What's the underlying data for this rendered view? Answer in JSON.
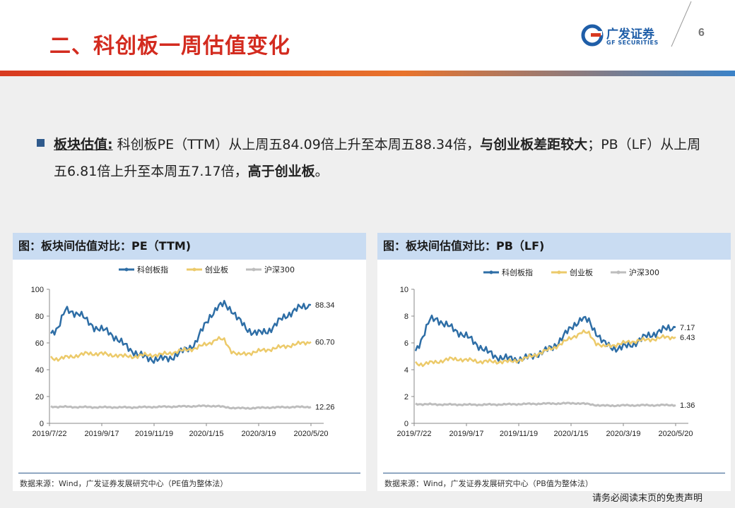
{
  "header": {
    "title": "二、科创板一周估值变化",
    "logo_cn": "广发证券",
    "logo_en": "GF SECURITIES",
    "page_number": "6"
  },
  "summary": {
    "label": "板块估值:",
    "part1": " 科创板PE（TTM）从上周五84.09倍上升至本周五88.34倍，",
    "bold1": "与创业板差距较大",
    "part2": "；PB（LF）从上周五6.81倍上升至本周五7.17倍，",
    "bold2": "高于创业板",
    "end": "。"
  },
  "colors": {
    "star": "#2e6ea6",
    "chinext": "#ecca6a",
    "hs300": "#bdbdbd"
  },
  "chart_data": [
    {
      "type": "line",
      "title": "图：板块间估值对比：PE（TTM)",
      "source": "数据来源：Wind，广发证券发展研究中心（PE值为整体法）",
      "x_ticks": [
        "2019/7/22",
        "2019/9/17",
        "2019/11/19",
        "2020/1/15",
        "2020/3/19",
        "2020/5/20"
      ],
      "ylim": [
        0,
        100
      ],
      "y_ticks": [
        "0",
        "20",
        "40",
        "60",
        "80",
        "100"
      ],
      "end_labels": [
        "88.34",
        "60.70",
        "12.26"
      ],
      "series": [
        {
          "name": "科创板指",
          "values": [
            67,
            72,
            84,
            83,
            82,
            76,
            72,
            70,
            68,
            64,
            59,
            55,
            52,
            49,
            48,
            48,
            48,
            50,
            53,
            56,
            60,
            70,
            80,
            86,
            89,
            85,
            77,
            71,
            68,
            67,
            69,
            73,
            78,
            82,
            85,
            87,
            88.34
          ]
        },
        {
          "name": "创业板",
          "values": [
            49,
            48,
            49,
            50,
            51,
            52,
            52,
            52,
            51,
            51,
            50,
            50,
            50,
            51,
            51,
            51,
            52,
            53,
            54,
            55,
            56,
            58,
            60,
            63,
            62,
            54,
            51,
            52,
            53,
            54,
            55,
            56,
            57,
            58,
            59,
            60,
            60.7
          ]
        },
        {
          "name": "沪深300",
          "values": [
            12.5,
            12.3,
            12.3,
            12.2,
            12.1,
            12.1,
            12.0,
            12.0,
            12.0,
            12.0,
            11.9,
            11.9,
            12.0,
            12.1,
            12.2,
            12.3,
            12.4,
            12.5,
            12.6,
            12.7,
            12.8,
            12.9,
            13.0,
            12.8,
            12.2,
            11.6,
            11.3,
            11.3,
            11.4,
            11.6,
            11.8,
            11.9,
            12.0,
            12.1,
            12.2,
            12.2,
            12.26
          ]
        }
      ]
    },
    {
      "type": "line",
      "title": "图：板块间估值对比：PB（LF)",
      "source": "数据来源：Wind，广发证券发展研究中心（PB值为整体法）",
      "x_ticks": [
        "2019/7/22",
        "2019/9/17",
        "2019/11/19",
        "2020/1/15",
        "2020/3/19",
        "2020/5/20"
      ],
      "ylim": [
        0,
        10
      ],
      "y_ticks": [
        "0",
        "2",
        "4",
        "6",
        "8",
        "10"
      ],
      "end_labels": [
        "7.17",
        "6.43",
        "1.36"
      ],
      "series": [
        {
          "name": "科创板指",
          "values": [
            5.4,
            6.5,
            7.7,
            7.8,
            7.4,
            7.1,
            6.8,
            6.5,
            6.1,
            5.7,
            5.3,
            5.0,
            4.9,
            4.8,
            4.8,
            4.8,
            5.0,
            5.2,
            5.4,
            5.7,
            6.2,
            6.8,
            7.4,
            7.8,
            7.6,
            6.8,
            6.0,
            5.7,
            5.6,
            5.7,
            5.9,
            6.2,
            6.5,
            6.7,
            6.9,
            7.1,
            7.17
          ]
        },
        {
          "name": "创业板",
          "values": [
            4.5,
            4.4,
            4.5,
            4.6,
            4.7,
            4.8,
            4.8,
            4.7,
            4.7,
            4.6,
            4.6,
            4.6,
            4.6,
            4.6,
            4.7,
            4.8,
            5.0,
            5.2,
            5.4,
            5.6,
            5.9,
            6.2,
            6.5,
            6.8,
            6.7,
            6.0,
            5.7,
            5.8,
            5.9,
            6.0,
            6.1,
            6.2,
            6.2,
            6.3,
            6.4,
            6.4,
            6.43
          ]
        },
        {
          "name": "沪深300",
          "values": [
            1.45,
            1.42,
            1.42,
            1.41,
            1.4,
            1.4,
            1.4,
            1.39,
            1.39,
            1.39,
            1.4,
            1.4,
            1.41,
            1.42,
            1.43,
            1.44,
            1.45,
            1.46,
            1.47,
            1.48,
            1.48,
            1.49,
            1.5,
            1.48,
            1.43,
            1.36,
            1.32,
            1.32,
            1.33,
            1.34,
            1.34,
            1.35,
            1.35,
            1.35,
            1.36,
            1.36,
            1.36
          ]
        }
      ]
    }
  ],
  "disclaimer": "请务必阅读末页的免责声明"
}
